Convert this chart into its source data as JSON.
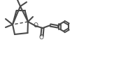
{
  "bg_color": "#ffffff",
  "line_color": "#4a4a4a",
  "line_width": 1.5,
  "fig_width": 1.63,
  "fig_height": 0.87,
  "dpi": 100
}
